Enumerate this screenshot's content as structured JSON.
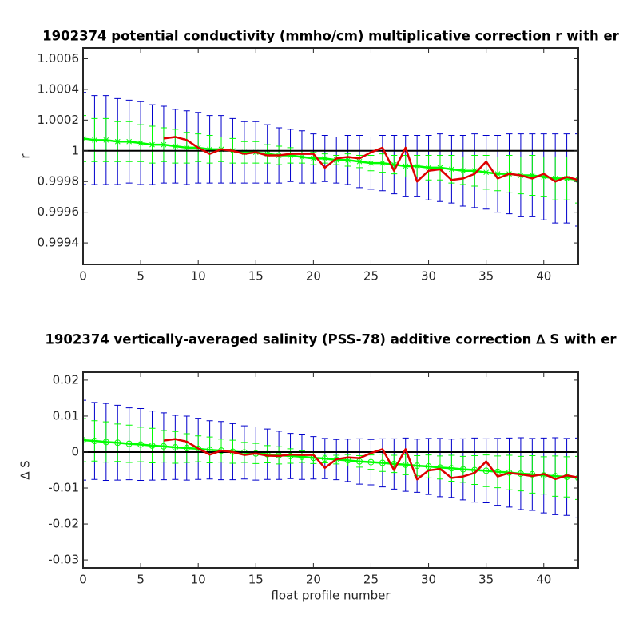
{
  "chart_data": [
    {
      "type": "errorbar_line",
      "title": "1902374 potential conductivity (mmho/cm) multiplicative correction r with er",
      "y_label": "r",
      "xlim": [
        0,
        43
      ],
      "xticks": [
        0,
        5,
        10,
        15,
        20,
        25,
        30,
        35,
        40
      ],
      "ylim": [
        0.99926,
        1.00067
      ],
      "yticks": [
        0.9994,
        0.9996,
        0.9998,
        1,
        1.0002,
        1.0004,
        1.0006
      ],
      "hline": 1,
      "hline_color": "#000000",
      "series": [
        {
          "color": "#00ff00",
          "marker": "x",
          "error_color": "#00ff00",
          "outer_error_color": "#0000cc",
          "x": [
            0,
            1,
            2,
            3,
            4,
            5,
            6,
            7,
            8,
            9,
            10,
            11,
            12,
            13,
            14,
            15,
            16,
            17,
            18,
            19,
            20,
            21,
            22,
            23,
            24,
            25,
            26,
            27,
            28,
            29,
            30,
            31,
            32,
            33,
            34,
            35,
            36,
            37,
            38,
            39,
            40,
            41,
            42,
            43
          ],
          "values": [
            1.00008,
            1.00007,
            1.00007,
            1.00006,
            1.00006,
            1.00005,
            1.00004,
            1.00004,
            1.00003,
            1.00002,
            1.00002,
            1.00001,
            1.00001,
            1.0,
            0.99999,
            0.99999,
            0.99998,
            0.99997,
            0.99997,
            0.99996,
            0.99995,
            0.99995,
            0.99994,
            0.99994,
            0.99993,
            0.99992,
            0.99992,
            0.99991,
            0.9999,
            0.9999,
            0.99989,
            0.99989,
            0.99988,
            0.99987,
            0.99987,
            0.99986,
            0.99985,
            0.99985,
            0.99984,
            0.99984,
            0.99983,
            0.99982,
            0.99982,
            0.99981
          ],
          "errors": [
            0.00015,
            0.00014,
            0.00014,
            0.00013,
            0.00013,
            0.00012,
            0.00012,
            0.00011,
            0.00011,
            0.0001,
            9e-05,
            9e-05,
            8e-05,
            8e-05,
            7e-05,
            7e-05,
            6e-05,
            6e-05,
            5e-05,
            4e-05,
            4e-05,
            3e-05,
            3e-05,
            4e-05,
            4e-05,
            5e-05,
            6e-05,
            6e-05,
            7e-05,
            7e-05,
            8e-05,
            8e-05,
            9e-05,
            9e-05,
            0.0001,
            0.00011,
            0.00011,
            0.00012,
            0.00012,
            0.00013,
            0.00013,
            0.00014,
            0.00014,
            0.00015
          ],
          "outer_errors": [
            0.0003,
            0.00029,
            0.00029,
            0.00028,
            0.00027,
            0.00027,
            0.00026,
            0.00025,
            0.00024,
            0.00024,
            0.00023,
            0.00022,
            0.00022,
            0.00021,
            0.0002,
            0.0002,
            0.00019,
            0.00018,
            0.00017,
            0.00017,
            0.00016,
            0.00015,
            0.00015,
            0.00016,
            0.00017,
            0.00017,
            0.00018,
            0.00019,
            0.0002,
            0.0002,
            0.00021,
            0.00022,
            0.00022,
            0.00023,
            0.00024,
            0.00024,
            0.00025,
            0.00026,
            0.00027,
            0.00027,
            0.00028,
            0.00029,
            0.00029,
            0.0003
          ]
        },
        {
          "color": "#dd0000",
          "x": [
            7,
            8,
            9,
            10,
            11,
            12,
            13,
            14,
            15,
            16,
            17,
            18,
            19,
            20,
            21,
            22,
            23,
            24,
            25,
            26,
            27,
            28,
            29,
            30,
            31,
            32,
            33,
            34,
            35,
            36,
            37,
            38,
            39,
            40,
            41,
            42,
            43
          ],
          "values": [
            1.00008,
            1.00009,
            1.00007,
            1.00002,
            0.99998,
            1.00001,
            1.0,
            0.99998,
            0.99999,
            0.99997,
            0.99997,
            0.99998,
            0.99998,
            0.99998,
            0.99989,
            0.99995,
            0.99996,
            0.99995,
            0.99999,
            1.00002,
            0.99987,
            1.00002,
            0.9998,
            0.99987,
            0.99988,
            0.99981,
            0.99982,
            0.99985,
            0.99993,
            0.99982,
            0.99985,
            0.99984,
            0.99982,
            0.99985,
            0.9998,
            0.99983,
            0.99981
          ]
        }
      ]
    },
    {
      "type": "errorbar_line",
      "title": "1902374 vertically-averaged salinity (PSS-78) additive correction ∆ S with er",
      "y_label": "∆ S",
      "x_label": "float profile number",
      "xlim": [
        0,
        43
      ],
      "xticks": [
        0,
        5,
        10,
        15,
        20,
        25,
        30,
        35,
        40
      ],
      "ylim": [
        -0.0322,
        0.0222
      ],
      "yticks": [
        -0.03,
        -0.02,
        -0.01,
        0,
        0.01,
        0.02
      ],
      "hline": 0,
      "hline_color": "#000000",
      "series": [
        {
          "color": "#00ff00",
          "marker": "o",
          "error_color": "#00ff00",
          "outer_error_color": "#0000cc",
          "x": [
            0,
            1,
            2,
            3,
            4,
            5,
            6,
            7,
            8,
            9,
            10,
            11,
            12,
            13,
            14,
            15,
            16,
            17,
            18,
            19,
            20,
            21,
            22,
            23,
            24,
            25,
            26,
            27,
            28,
            29,
            30,
            31,
            32,
            33,
            34,
            35,
            36,
            37,
            38,
            39,
            40,
            41,
            42,
            43
          ],
          "values": [
            0.0033,
            0.0031,
            0.0028,
            0.0026,
            0.0023,
            0.0021,
            0.0018,
            0.0016,
            0.0013,
            0.0011,
            0.0009,
            0.0006,
            0.0004,
            0.0001,
            -0.0001,
            -0.0004,
            -0.0006,
            -0.0009,
            -0.0011,
            -0.0013,
            -0.0016,
            -0.0018,
            -0.0021,
            -0.0023,
            -0.0026,
            -0.0028,
            -0.003,
            -0.0033,
            -0.0035,
            -0.0038,
            -0.004,
            -0.0043,
            -0.0045,
            -0.0048,
            -0.005,
            -0.0052,
            -0.0055,
            -0.0057,
            -0.006,
            -0.0062,
            -0.0065,
            -0.0067,
            -0.0069,
            -0.0072
          ],
          "errors": [
            0.006,
            0.0056,
            0.0056,
            0.0052,
            0.0052,
            0.0048,
            0.0048,
            0.0044,
            0.0044,
            0.004,
            0.0036,
            0.0036,
            0.0032,
            0.0032,
            0.0028,
            0.0028,
            0.0024,
            0.0024,
            0.002,
            0.0016,
            0.0016,
            0.0012,
            0.0012,
            0.0016,
            0.0016,
            0.002,
            0.0024,
            0.0024,
            0.0028,
            0.0028,
            0.0032,
            0.0032,
            0.0036,
            0.0036,
            0.004,
            0.0044,
            0.0044,
            0.0048,
            0.0048,
            0.0052,
            0.0052,
            0.0056,
            0.0056,
            0.006
          ],
          "outer_errors": [
            0.0111,
            0.0107,
            0.0107,
            0.0104,
            0.01,
            0.01,
            0.0096,
            0.0093,
            0.0089,
            0.0089,
            0.0085,
            0.0081,
            0.0081,
            0.0078,
            0.0074,
            0.0074,
            0.007,
            0.0067,
            0.0063,
            0.0063,
            0.0059,
            0.0056,
            0.0056,
            0.0059,
            0.0063,
            0.0063,
            0.0067,
            0.007,
            0.0074,
            0.0074,
            0.0078,
            0.0081,
            0.0081,
            0.0085,
            0.0089,
            0.0089,
            0.0093,
            0.0096,
            0.01,
            0.01,
            0.0104,
            0.0107,
            0.0107,
            0.0111
          ]
        },
        {
          "color": "#dd0000",
          "x": [
            7,
            8,
            9,
            10,
            11,
            12,
            13,
            14,
            15,
            16,
            17,
            18,
            19,
            20,
            21,
            22,
            23,
            24,
            25,
            26,
            27,
            28,
            29,
            30,
            31,
            32,
            33,
            34,
            35,
            36,
            37,
            38,
            39,
            40,
            41,
            42,
            43
          ],
          "values": [
            0.0032,
            0.0036,
            0.0029,
            0.001,
            -0.0007,
            0.0004,
            0.0,
            -0.0008,
            -0.0004,
            -0.001,
            -0.0011,
            -0.0007,
            -0.0008,
            -0.0008,
            -0.0044,
            -0.002,
            -0.0015,
            -0.0017,
            -0.0003,
            0.0008,
            -0.005,
            0.0008,
            -0.0076,
            -0.0051,
            -0.0047,
            -0.0072,
            -0.0068,
            -0.0058,
            -0.0026,
            -0.0068,
            -0.0058,
            -0.0062,
            -0.0067,
            -0.0061,
            -0.0075,
            -0.0065,
            -0.0071
          ]
        }
      ]
    }
  ]
}
